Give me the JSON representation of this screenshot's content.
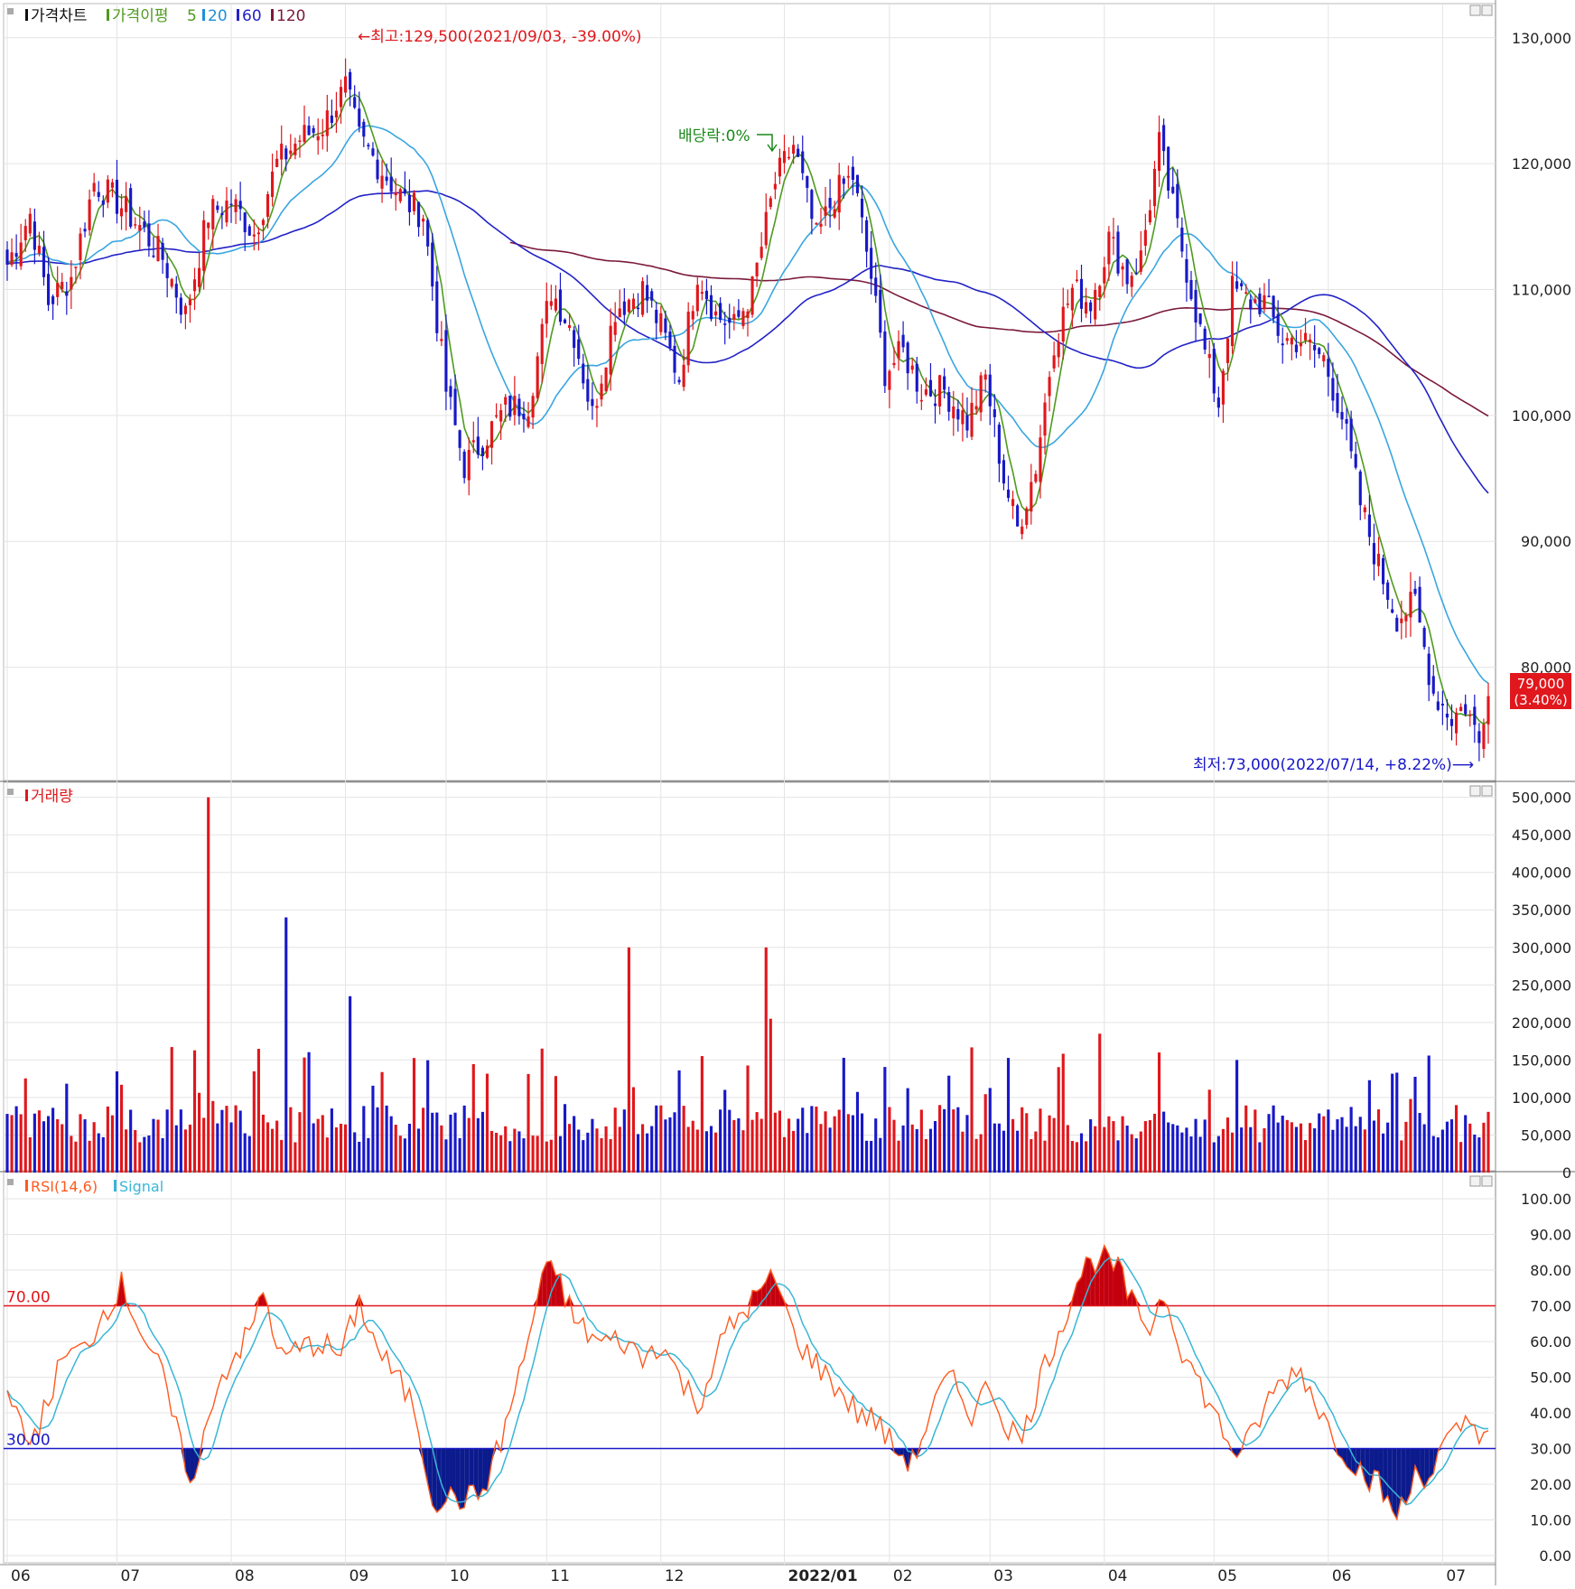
{
  "legends": {
    "price": {
      "title": "가격차트",
      "ma_label": "가격이평",
      "ma_items": [
        {
          "label": "5",
          "color": "#4f9a1f"
        },
        {
          "label": "20",
          "color": "#1e90d8"
        },
        {
          "label": "60",
          "color": "#2222c8"
        },
        {
          "label": "120",
          "color": "#7b1a3c"
        }
      ]
    },
    "volume": {
      "title": "거래량"
    },
    "rsi": {
      "title": "RSI(14,6)",
      "signal": "Signal"
    }
  },
  "annotations": {
    "high": "←최고:129,500(2021/09/03, -39.00%)",
    "dividend": "배당락:0%",
    "low": "최저:73,000(2022/07/14, +8.22%)⟶",
    "last_price": "79,000",
    "last_change": "(3.40%)"
  },
  "axes": {
    "price_ticks": [
      "130,000",
      "120,000",
      "110,000",
      "100,000",
      "90,000",
      "80,000"
    ],
    "volume_ticks": [
      "500,000",
      "450,000",
      "400,000",
      "350,000",
      "300,000",
      "250,000",
      "200,000",
      "150,000",
      "100,000",
      "50,000",
      "0"
    ],
    "rsi_ticks": [
      "100.00",
      "90.00",
      "80.00",
      "70.00",
      "60.00",
      "50.00",
      "40.00",
      "30.00",
      "20.00",
      "10.00",
      "0.00"
    ],
    "rsi_levels": [
      "70.00",
      "30.00"
    ],
    "x_labels": [
      "06",
      "07",
      "08",
      "09",
      "10",
      "11",
      "12",
      "2022/01",
      "02",
      "03",
      "04",
      "05",
      "06",
      "07"
    ]
  },
  "colors": {
    "up": "#e0171c",
    "down": "#1818c8",
    "ma5": "#4f9a1f",
    "ma20": "#3aa6e0",
    "ma60": "#2222c8",
    "ma120": "#7b1a3c",
    "rsi": "#ff5a1f",
    "signal": "#39b6d6",
    "grid": "#e4e4e4"
  },
  "chart_data": {
    "type": "candlestick",
    "price_ylim": [
      71000,
      133000
    ],
    "volume_ylim": [
      0,
      520000
    ],
    "rsi_ylim": [
      0,
      100
    ],
    "rsi_levels": [
      70,
      30
    ],
    "price_keypoints": [
      [
        0,
        112000
      ],
      [
        5,
        116000
      ],
      [
        9,
        109000
      ],
      [
        14,
        111000
      ],
      [
        19,
        118500
      ],
      [
        24,
        117000
      ],
      [
        29,
        115000
      ],
      [
        34,
        112500
      ],
      [
        39,
        108000
      ],
      [
        44,
        116000
      ],
      [
        49,
        117000
      ],
      [
        54,
        114500
      ],
      [
        59,
        120000
      ],
      [
        64,
        122000
      ],
      [
        69,
        123000
      ],
      [
        74,
        126000
      ],
      [
        77,
        122000
      ],
      [
        82,
        119500
      ],
      [
        87,
        117000
      ],
      [
        91,
        116000
      ],
      [
        96,
        102000
      ],
      [
        100,
        96000
      ],
      [
        104,
        98000
      ],
      [
        109,
        100500
      ],
      [
        114,
        101000
      ],
      [
        119,
        110000
      ],
      [
        124,
        106500
      ],
      [
        128,
        100000
      ],
      [
        133,
        108500
      ],
      [
        139,
        110000
      ],
      [
        143,
        107000
      ],
      [
        147,
        103000
      ],
      [
        151,
        111500
      ],
      [
        155,
        108000
      ],
      [
        159,
        107000
      ],
      [
        163,
        110000
      ],
      [
        168,
        118500
      ],
      [
        172,
        121500
      ],
      [
        177,
        114000
      ],
      [
        181,
        117500
      ],
      [
        185,
        119000
      ],
      [
        189,
        111000
      ],
      [
        192,
        103500
      ],
      [
        196,
        105000
      ],
      [
        200,
        102000
      ],
      [
        205,
        102000
      ],
      [
        210,
        99500
      ],
      [
        214,
        103000
      ],
      [
        218,
        95000
      ],
      [
        221,
        91000
      ],
      [
        225,
        96000
      ],
      [
        229,
        106000
      ],
      [
        233,
        110000
      ],
      [
        237,
        109000
      ],
      [
        241,
        114000
      ],
      [
        245,
        111000
      ],
      [
        248,
        112500
      ],
      [
        252,
        121500
      ],
      [
        255,
        116500
      ],
      [
        259,
        110000
      ],
      [
        262,
        105000
      ],
      [
        265,
        101000
      ],
      [
        268,
        110000
      ],
      [
        272,
        109000
      ],
      [
        275,
        109000
      ],
      [
        279,
        106000
      ],
      [
        283,
        106000
      ],
      [
        288,
        104500
      ],
      [
        292,
        100000
      ],
      [
        296,
        93000
      ],
      [
        300,
        88000
      ],
      [
        304,
        84000
      ],
      [
        308,
        85000
      ],
      [
        312,
        78000
      ],
      [
        316,
        76000
      ],
      [
        319,
        77000
      ],
      [
        322,
        74000
      ],
      [
        324,
        79000
      ]
    ],
    "volume_spikes": [
      [
        44,
        500000
      ],
      [
        61,
        340000
      ],
      [
        75,
        235000
      ],
      [
        136,
        300000
      ],
      [
        166,
        300000
      ],
      [
        167,
        205000
      ],
      [
        239,
        185000
      ],
      [
        252,
        160000
      ],
      [
        269,
        150000
      ]
    ],
    "rsi_keypoints": [
      [
        0,
        50
      ],
      [
        4,
        30
      ],
      [
        8,
        40
      ],
      [
        12,
        55
      ],
      [
        17,
        58
      ],
      [
        21,
        68
      ],
      [
        25,
        76
      ],
      [
        29,
        64
      ],
      [
        34,
        50
      ],
      [
        38,
        30
      ],
      [
        41,
        20
      ],
      [
        45,
        45
      ],
      [
        49,
        55
      ],
      [
        53,
        62
      ],
      [
        56,
        74
      ],
      [
        60,
        55
      ],
      [
        64,
        58
      ],
      [
        68,
        60
      ],
      [
        73,
        56
      ],
      [
        77,
        71
      ],
      [
        81,
        58
      ],
      [
        85,
        50
      ],
      [
        89,
        42
      ],
      [
        93,
        16
      ],
      [
        98,
        16
      ],
      [
        101,
        16
      ],
      [
        104,
        18
      ],
      [
        108,
        32
      ],
      [
        113,
        55
      ],
      [
        117,
        78
      ],
      [
        120,
        80
      ],
      [
        124,
        66
      ],
      [
        129,
        60
      ],
      [
        135,
        60
      ],
      [
        139,
        55
      ],
      [
        143,
        60
      ],
      [
        147,
        50
      ],
      [
        151,
        42
      ],
      [
        157,
        62
      ],
      [
        162,
        70
      ],
      [
        168,
        78
      ],
      [
        172,
        62
      ],
      [
        176,
        55
      ],
      [
        181,
        48
      ],
      [
        186,
        40
      ],
      [
        190,
        38
      ],
      [
        194,
        30
      ],
      [
        198,
        26
      ],
      [
        202,
        40
      ],
      [
        206,
        50
      ],
      [
        211,
        40
      ],
      [
        215,
        48
      ],
      [
        218,
        38
      ],
      [
        222,
        32
      ],
      [
        226,
        50
      ],
      [
        231,
        66
      ],
      [
        235,
        80
      ],
      [
        239,
        84
      ],
      [
        243,
        80
      ],
      [
        247,
        68
      ],
      [
        250,
        64
      ],
      [
        253,
        74
      ],
      [
        257,
        58
      ],
      [
        262,
        45
      ],
      [
        267,
        32
      ],
      [
        270,
        28
      ],
      [
        273,
        36
      ],
      [
        277,
        46
      ],
      [
        280,
        50
      ],
      [
        283,
        52
      ],
      [
        286,
        44
      ],
      [
        289,
        36
      ],
      [
        292,
        30
      ],
      [
        296,
        24
      ],
      [
        300,
        20
      ],
      [
        303,
        12
      ],
      [
        306,
        14
      ],
      [
        308,
        24
      ],
      [
        311,
        22
      ],
      [
        314,
        30
      ],
      [
        317,
        34
      ],
      [
        320,
        38
      ],
      [
        323,
        34
      ],
      [
        324,
        36
      ]
    ]
  }
}
